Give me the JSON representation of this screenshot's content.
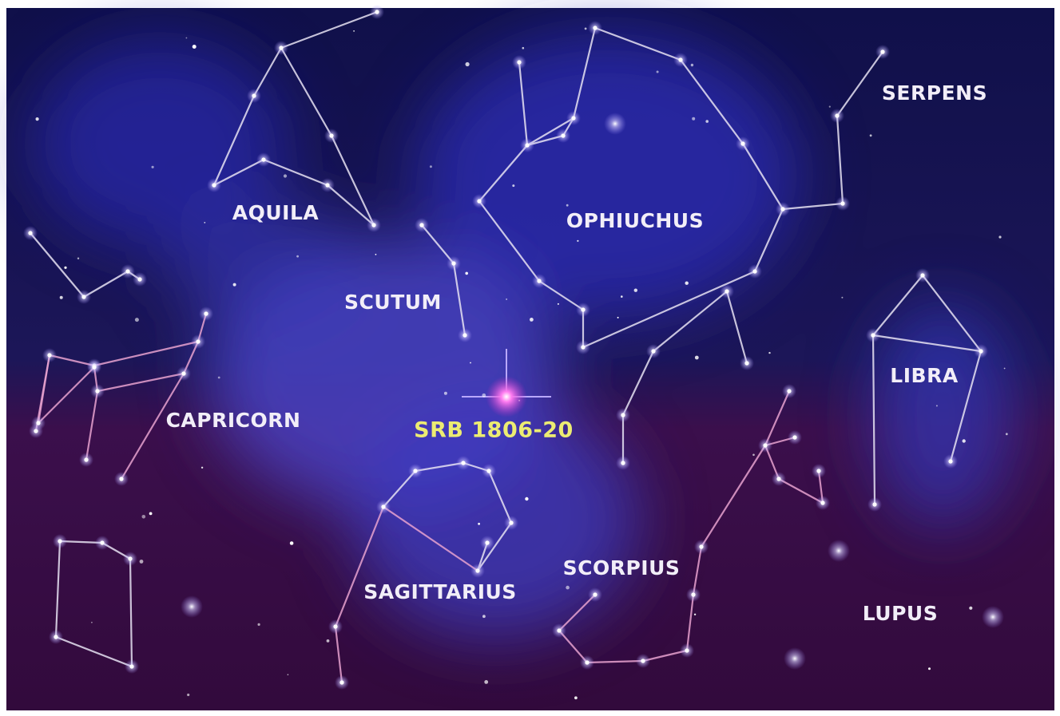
{
  "labels": [
    {
      "text": "SERPENS"
    },
    {
      "text": "AQUILA"
    },
    {
      "text": "OPHIUCHUS"
    },
    {
      "text": "SCUTUM"
    },
    {
      "text": "LIBRA"
    },
    {
      "text": "CAPRICORN"
    },
    {
      "text": "SRB 1806-20"
    },
    {
      "text": "SCORPIUS"
    },
    {
      "text": "SAGITTARIUS"
    },
    {
      "text": "LUPUS"
    }
  ]
}
